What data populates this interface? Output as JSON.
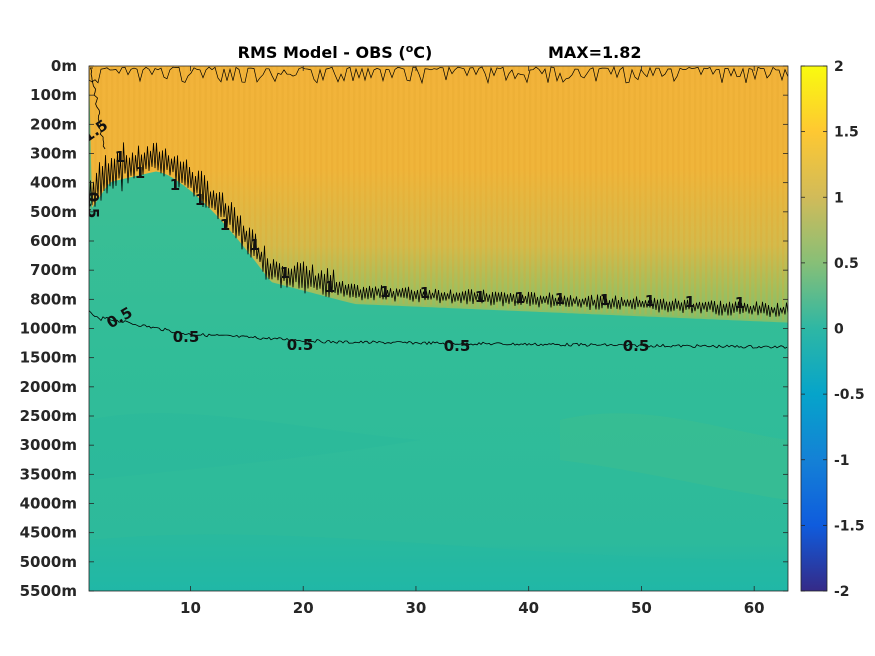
{
  "chart_data": {
    "type": "heatmap",
    "title": "RMS Model - OBS (°C)",
    "title_main": "RMS Model - OBS (",
    "title_sup": "o",
    "title_end": "C)",
    "max_label": "MAX=1.82",
    "x_ticks": [
      10,
      20,
      30,
      40,
      50,
      60
    ],
    "xlim": [
      1,
      63
    ],
    "y_ticks": [
      "0m",
      "100m",
      "200m",
      "300m",
      "400m",
      "500m",
      "600m",
      "700m",
      "800m",
      "1000m",
      "1500m",
      "2000m",
      "2500m",
      "3000m",
      "3500m",
      "4000m",
      "4500m",
      "5000m",
      "5500m"
    ],
    "colorbar_ticks": [
      2,
      1.5,
      1,
      0.5,
      0,
      -0.5,
      -1,
      -1.5,
      -2
    ],
    "colorbar_labels": [
      "2",
      "1.5",
      "1",
      "0.5",
      "0",
      "-0.5",
      "-1",
      "-1.5",
      "-2"
    ],
    "clim": [
      -2,
      2
    ],
    "colormap": "parula",
    "contour_levels": [
      0.5,
      1,
      1.5
    ],
    "contour_labels": [
      "1.5",
      "0.5",
      "0.5",
      "0.5",
      "0.5",
      "0.5",
      "0.5",
      "1",
      "1",
      "1",
      "1",
      "1",
      "1",
      "1",
      "1",
      "1",
      "1",
      "1",
      "1",
      "1",
      "1",
      "1",
      "1",
      "1"
    ],
    "upper_layer_value": 1.35,
    "deep_layer_value": 0.3,
    "colors": {
      "upper": "#f2b436",
      "deep": "#2ebf9c",
      "contour": "#000000"
    }
  }
}
